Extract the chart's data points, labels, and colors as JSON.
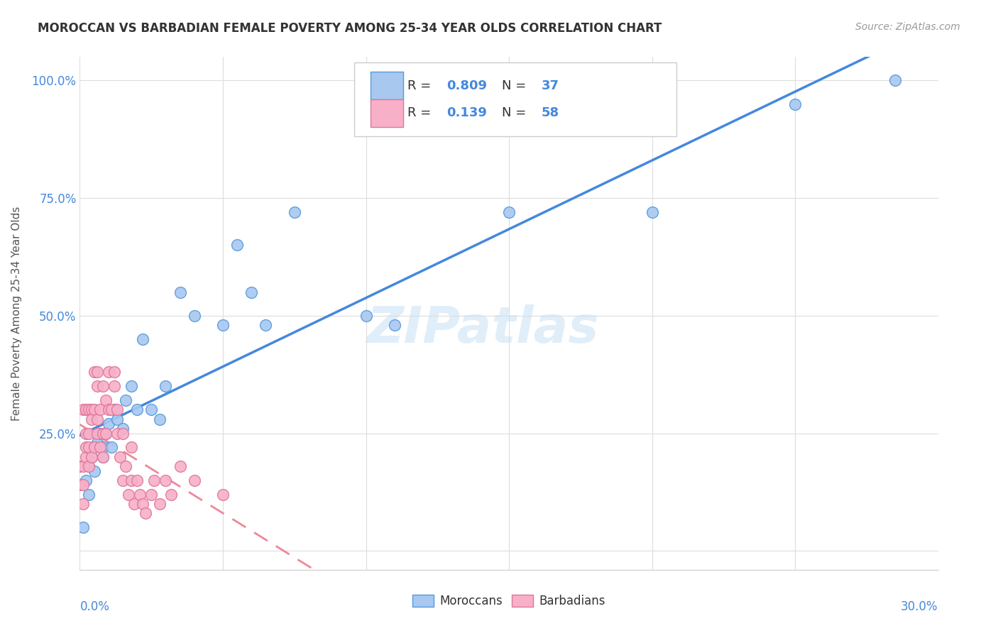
{
  "title": "MOROCCAN VS BARBADIAN FEMALE POVERTY AMONG 25-34 YEAR OLDS CORRELATION CHART",
  "source": "Source: ZipAtlas.com",
  "ylabel": "Female Poverty Among 25-34 Year Olds",
  "x_range": [
    0.0,
    0.3
  ],
  "y_range": [
    -0.04,
    1.05
  ],
  "moroccan_R": 0.809,
  "moroccan_N": 37,
  "barbadian_R": 0.139,
  "barbadian_N": 58,
  "moroccan_color": "#a8c8f0",
  "barbadian_color": "#f8b0c8",
  "moroccan_edge_color": "#5599dd",
  "barbadian_edge_color": "#dd7799",
  "moroccan_line_color": "#4488dd",
  "barbadian_line_color": "#ee8899",
  "watermark": "ZIPatlas",
  "moroccan_points_x": [
    0.001,
    0.002,
    0.003,
    0.003,
    0.004,
    0.005,
    0.005,
    0.006,
    0.007,
    0.008,
    0.008,
    0.009,
    0.01,
    0.011,
    0.012,
    0.013,
    0.015,
    0.016,
    0.018,
    0.02,
    0.022,
    0.025,
    0.028,
    0.03,
    0.035,
    0.04,
    0.05,
    0.055,
    0.06,
    0.065,
    0.075,
    0.1,
    0.11,
    0.15,
    0.2,
    0.25,
    0.285
  ],
  "moroccan_points_y": [
    0.05,
    0.15,
    0.12,
    0.18,
    0.2,
    0.22,
    0.17,
    0.23,
    0.25,
    0.2,
    0.22,
    0.25,
    0.27,
    0.22,
    0.3,
    0.28,
    0.26,
    0.32,
    0.35,
    0.3,
    0.45,
    0.3,
    0.28,
    0.35,
    0.55,
    0.5,
    0.48,
    0.65,
    0.55,
    0.48,
    0.72,
    0.5,
    0.48,
    0.72,
    0.72,
    0.95,
    1.0
  ],
  "barbadian_points_x": [
    0.0,
    0.0,
    0.001,
    0.001,
    0.001,
    0.001,
    0.002,
    0.002,
    0.002,
    0.002,
    0.003,
    0.003,
    0.003,
    0.003,
    0.004,
    0.004,
    0.004,
    0.005,
    0.005,
    0.005,
    0.006,
    0.006,
    0.006,
    0.006,
    0.007,
    0.007,
    0.008,
    0.008,
    0.008,
    0.009,
    0.009,
    0.01,
    0.01,
    0.011,
    0.012,
    0.012,
    0.013,
    0.013,
    0.014,
    0.015,
    0.015,
    0.016,
    0.017,
    0.018,
    0.018,
    0.019,
    0.02,
    0.021,
    0.022,
    0.023,
    0.025,
    0.026,
    0.028,
    0.03,
    0.032,
    0.035,
    0.04,
    0.05
  ],
  "barbadian_points_y": [
    0.18,
    0.14,
    0.3,
    0.1,
    0.18,
    0.14,
    0.25,
    0.2,
    0.3,
    0.22,
    0.3,
    0.25,
    0.18,
    0.22,
    0.3,
    0.28,
    0.2,
    0.38,
    0.3,
    0.22,
    0.25,
    0.35,
    0.38,
    0.28,
    0.22,
    0.3,
    0.25,
    0.35,
    0.2,
    0.25,
    0.32,
    0.38,
    0.3,
    0.3,
    0.35,
    0.38,
    0.25,
    0.3,
    0.2,
    0.15,
    0.25,
    0.18,
    0.12,
    0.15,
    0.22,
    0.1,
    0.15,
    0.12,
    0.1,
    0.08,
    0.12,
    0.15,
    0.1,
    0.15,
    0.12,
    0.18,
    0.15,
    0.12
  ]
}
